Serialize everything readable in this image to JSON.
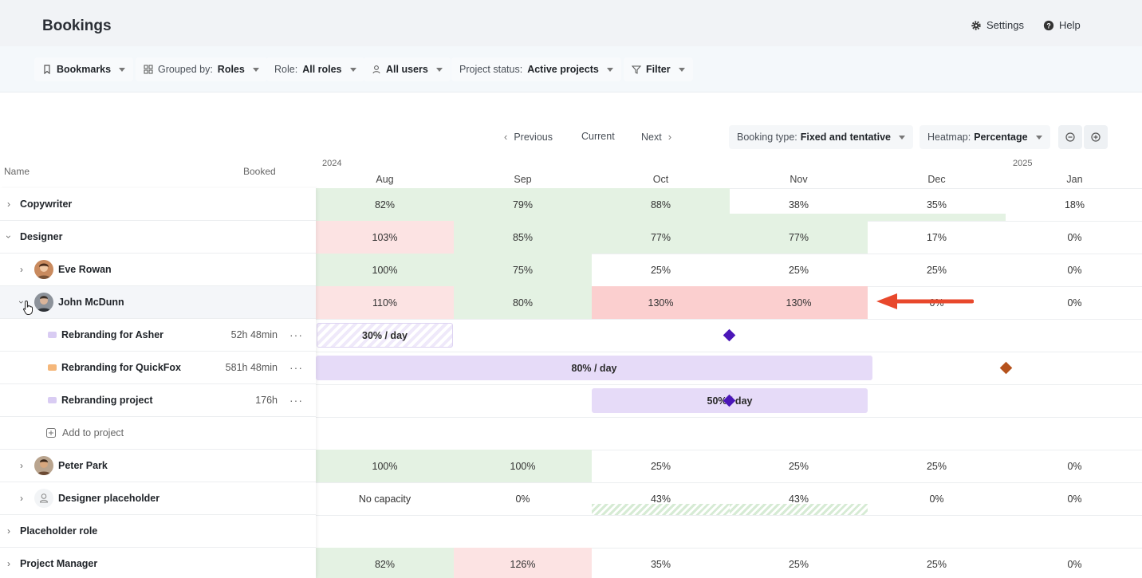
{
  "header": {
    "title": "Bookings",
    "settings_label": "Settings",
    "help_label": "Help"
  },
  "filters": {
    "bookmarks": "Bookmarks",
    "grouped_prefix": "Grouped by:",
    "grouped_value": "Roles",
    "role_prefix": "Role:",
    "role_value": "All roles",
    "users_value": "All users",
    "status_prefix": "Project status:",
    "status_value": "Active projects",
    "filter": "Filter"
  },
  "nav": {
    "previous": "Previous",
    "current": "Current",
    "next": "Next",
    "booking_type_prefix": "Booking type:",
    "booking_type_value": "Fixed and tentative",
    "heatmap_prefix": "Heatmap:",
    "heatmap_value": "Percentage"
  },
  "columns": {
    "name": "Name",
    "booked": "Booked"
  },
  "timeline": {
    "years": [
      "2024",
      "2025"
    ],
    "months": [
      "Aug",
      "Sep",
      "Oct",
      "Nov",
      "Dec",
      "Jan"
    ]
  },
  "rows": [
    {
      "label": "Copywriter",
      "values": [
        "82%",
        "79%",
        "88%",
        "38%",
        "35%",
        "18%"
      ]
    },
    {
      "label": "Designer",
      "values": [
        "103%",
        "85%",
        "77%",
        "77%",
        "17%",
        "0%"
      ]
    },
    {
      "label": "Eve Rowan",
      "values": [
        "100%",
        "75%",
        "25%",
        "25%",
        "25%",
        "0%"
      ]
    },
    {
      "label": "John McDunn",
      "values": [
        "110%",
        "80%",
        "130%",
        "130%",
        "0%",
        "0%"
      ]
    },
    {
      "label": "Rebranding for Asher",
      "booked": "52h 48min",
      "bar": "30% / day"
    },
    {
      "label": "Rebranding for QuickFox",
      "booked": "581h 48min",
      "bar": "80% / day"
    },
    {
      "label": "Rebranding project",
      "booked": "176h",
      "bar": "50% / day"
    },
    {
      "label": "Add to project"
    },
    {
      "label": "Peter Park",
      "values": [
        "100%",
        "100%",
        "25%",
        "25%",
        "25%",
        "0%"
      ]
    },
    {
      "label": "Designer placeholder",
      "values": [
        "No capacity",
        "0%",
        "43%",
        "43%",
        "0%",
        "0%"
      ]
    },
    {
      "label": "Placeholder role"
    },
    {
      "label": "Project Manager",
      "values": [
        "82%",
        "126%",
        "35%",
        "25%",
        "25%",
        "0%"
      ]
    }
  ],
  "more_label": "···",
  "colors": {
    "under": "#e4f2e3",
    "over": "#fce3e3",
    "overstrong": "#fbcfcf",
    "bar": "#e6dbf8",
    "accent": "#e8482c"
  }
}
